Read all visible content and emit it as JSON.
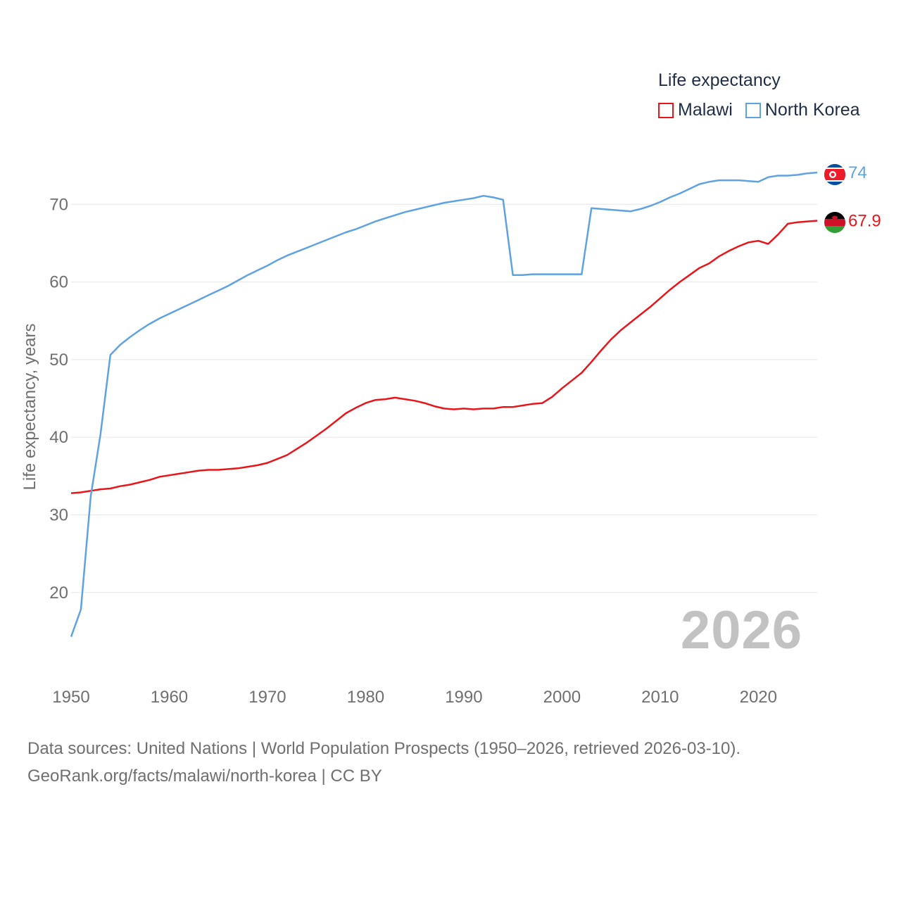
{
  "legend": {
    "title": "Life expectancy",
    "items": [
      {
        "name": "Malawi",
        "color": "#e8161b"
      },
      {
        "name": "North Korea",
        "color": "#5fa2e2"
      }
    ]
  },
  "year_badge": "2026",
  "source": {
    "line1": "Data sources: United Nations | World Population Prospects (1950–2026, retrieved 2026-03-10).",
    "line2": "GeoRank.org/facts/malawi/north-korea | CC BY"
  },
  "chart_data": {
    "type": "line",
    "title": "Life expectancy",
    "xlabel": "",
    "ylabel": "Life expectancy, years",
    "xlim": [
      1950,
      2026
    ],
    "ylim": [
      12,
      80
    ],
    "x_ticks": [
      1950,
      1960,
      1970,
      1980,
      1990,
      2000,
      2010,
      2020
    ],
    "y_ticks": [
      20,
      30,
      40,
      50,
      60,
      70
    ],
    "grid": true,
    "legend_position": "top-right",
    "series": [
      {
        "name": "Malawi",
        "color": "#e8161b",
        "end_label": "67.9",
        "points": [
          [
            1950,
            32.8
          ],
          [
            1951,
            32.9
          ],
          [
            1952,
            33.1
          ],
          [
            1953,
            33.3
          ],
          [
            1954,
            33.4
          ],
          [
            1955,
            33.7
          ],
          [
            1956,
            33.9
          ],
          [
            1957,
            34.2
          ],
          [
            1958,
            34.5
          ],
          [
            1959,
            34.9
          ],
          [
            1960,
            35.1
          ],
          [
            1961,
            35.3
          ],
          [
            1962,
            35.5
          ],
          [
            1963,
            35.7
          ],
          [
            1964,
            35.8
          ],
          [
            1965,
            35.8
          ],
          [
            1966,
            35.9
          ],
          [
            1967,
            36.0
          ],
          [
            1968,
            36.2
          ],
          [
            1969,
            36.4
          ],
          [
            1970,
            36.7
          ],
          [
            1971,
            37.2
          ],
          [
            1972,
            37.7
          ],
          [
            1973,
            38.5
          ],
          [
            1974,
            39.3
          ],
          [
            1975,
            40.2
          ],
          [
            1976,
            41.1
          ],
          [
            1977,
            42.1
          ],
          [
            1978,
            43.1
          ],
          [
            1979,
            43.8
          ],
          [
            1980,
            44.4
          ],
          [
            1981,
            44.8
          ],
          [
            1982,
            44.9
          ],
          [
            1983,
            45.1
          ],
          [
            1984,
            44.9
          ],
          [
            1985,
            44.7
          ],
          [
            1986,
            44.4
          ],
          [
            1987,
            44.0
          ],
          [
            1988,
            43.7
          ],
          [
            1989,
            43.6
          ],
          [
            1990,
            43.7
          ],
          [
            1991,
            43.6
          ],
          [
            1992,
            43.7
          ],
          [
            1993,
            43.7
          ],
          [
            1994,
            43.9
          ],
          [
            1995,
            43.9
          ],
          [
            1996,
            44.1
          ],
          [
            1997,
            44.3
          ],
          [
            1998,
            44.4
          ],
          [
            1999,
            45.2
          ],
          [
            2000,
            46.3
          ],
          [
            2001,
            47.3
          ],
          [
            2002,
            48.3
          ],
          [
            2003,
            49.7
          ],
          [
            2004,
            51.2
          ],
          [
            2005,
            52.6
          ],
          [
            2006,
            53.8
          ],
          [
            2007,
            54.8
          ],
          [
            2008,
            55.8
          ],
          [
            2009,
            56.8
          ],
          [
            2010,
            57.9
          ],
          [
            2011,
            59.0
          ],
          [
            2012,
            60.0
          ],
          [
            2013,
            60.9
          ],
          [
            2014,
            61.8
          ],
          [
            2015,
            62.4
          ],
          [
            2016,
            63.3
          ],
          [
            2017,
            64.0
          ],
          [
            2018,
            64.6
          ],
          [
            2019,
            65.1
          ],
          [
            2020,
            65.3
          ],
          [
            2021,
            64.9
          ],
          [
            2022,
            66.1
          ],
          [
            2023,
            67.5
          ],
          [
            2024,
            67.7
          ],
          [
            2025,
            67.8
          ],
          [
            2026,
            67.9
          ]
        ]
      },
      {
        "name": "North Korea",
        "color": "#5fa2e2",
        "end_label": "74",
        "points": [
          [
            1950,
            14.3
          ],
          [
            1951,
            17.8
          ],
          [
            1952,
            32.4
          ],
          [
            1953,
            40.4
          ],
          [
            1954,
            50.6
          ],
          [
            1955,
            51.9
          ],
          [
            1956,
            52.9
          ],
          [
            1957,
            53.8
          ],
          [
            1958,
            54.6
          ],
          [
            1959,
            55.3
          ],
          [
            1960,
            55.9
          ],
          [
            1961,
            56.5
          ],
          [
            1962,
            57.1
          ],
          [
            1963,
            57.7
          ],
          [
            1964,
            58.3
          ],
          [
            1965,
            58.9
          ],
          [
            1966,
            59.5
          ],
          [
            1967,
            60.2
          ],
          [
            1968,
            60.9
          ],
          [
            1969,
            61.5
          ],
          [
            1970,
            62.1
          ],
          [
            1971,
            62.8
          ],
          [
            1972,
            63.4
          ],
          [
            1973,
            63.9
          ],
          [
            1974,
            64.4
          ],
          [
            1975,
            64.9
          ],
          [
            1976,
            65.4
          ],
          [
            1977,
            65.9
          ],
          [
            1978,
            66.4
          ],
          [
            1979,
            66.8
          ],
          [
            1980,
            67.3
          ],
          [
            1981,
            67.8
          ],
          [
            1982,
            68.2
          ],
          [
            1983,
            68.6
          ],
          [
            1984,
            69.0
          ],
          [
            1985,
            69.3
          ],
          [
            1986,
            69.6
          ],
          [
            1987,
            69.9
          ],
          [
            1988,
            70.2
          ],
          [
            1989,
            70.4
          ],
          [
            1990,
            70.6
          ],
          [
            1991,
            70.8
          ],
          [
            1992,
            71.1
          ],
          [
            1993,
            70.9
          ],
          [
            1994,
            70.6
          ],
          [
            1995,
            60.9
          ],
          [
            1996,
            60.9
          ],
          [
            1997,
            61.0
          ],
          [
            1998,
            61.0
          ],
          [
            1999,
            61.0
          ],
          [
            2000,
            61.0
          ],
          [
            2001,
            61.0
          ],
          [
            2002,
            61.0
          ],
          [
            2003,
            69.5
          ],
          [
            2004,
            69.4
          ],
          [
            2005,
            69.3
          ],
          [
            2006,
            69.2
          ],
          [
            2007,
            69.1
          ],
          [
            2008,
            69.4
          ],
          [
            2009,
            69.8
          ],
          [
            2010,
            70.3
          ],
          [
            2011,
            70.9
          ],
          [
            2012,
            71.4
          ],
          [
            2013,
            72.0
          ],
          [
            2014,
            72.6
          ],
          [
            2015,
            72.9
          ],
          [
            2016,
            73.1
          ],
          [
            2017,
            73.1
          ],
          [
            2018,
            73.1
          ],
          [
            2019,
            73.0
          ],
          [
            2020,
            72.9
          ],
          [
            2021,
            73.5
          ],
          [
            2022,
            73.7
          ],
          [
            2023,
            73.7
          ],
          [
            2024,
            73.8
          ],
          [
            2025,
            74.0
          ],
          [
            2026,
            74.1
          ]
        ]
      }
    ]
  }
}
